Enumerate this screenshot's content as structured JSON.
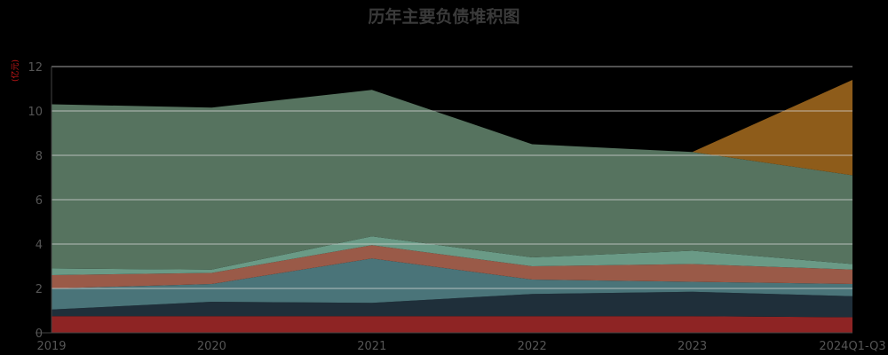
{
  "chart_data": {
    "type": "area",
    "stacked": true,
    "title": "历年主要负债堆积图",
    "ylabel": "(亿元)",
    "ylim": [
      0,
      12
    ],
    "yticks": [
      0,
      2,
      4,
      6,
      8,
      10,
      12
    ],
    "categories": [
      "2019",
      "2020",
      "2021",
      "2022",
      "2023",
      "2024Q1-Q3"
    ],
    "grid": true,
    "series": [
      {
        "color": "#8e2424",
        "values": [
          0.75,
          0.75,
          0.75,
          0.75,
          0.75,
          0.7
        ]
      },
      {
        "color": "#1f2f3a",
        "values": [
          0.3,
          0.65,
          0.6,
          1.0,
          1.1,
          0.95
        ]
      },
      {
        "color": "#4a7479",
        "values": [
          0.95,
          0.8,
          2.0,
          0.65,
          0.45,
          0.55
        ]
      },
      {
        "color": "#9a5a48",
        "values": [
          0.6,
          0.5,
          0.6,
          0.6,
          0.8,
          0.65
        ]
      },
      {
        "color": "#6a9a86",
        "values": [
          0.3,
          0.15,
          0.4,
          0.4,
          0.6,
          0.25
        ]
      },
      {
        "color": "#56735f",
        "values": [
          7.4,
          7.3,
          6.6,
          5.1,
          4.45,
          4.0
        ]
      },
      {
        "color": "#8e5c1a",
        "values": [
          0,
          0,
          0,
          0,
          0,
          4.3
        ]
      }
    ]
  }
}
